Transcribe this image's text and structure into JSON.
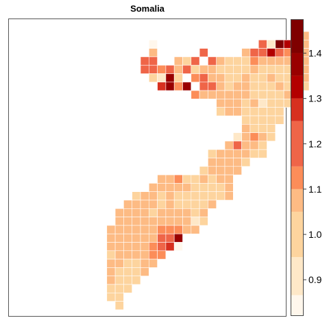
{
  "title": "Somalia",
  "colorbar": {
    "ticks": [
      0.9,
      1.0,
      1.1,
      1.2,
      1.3,
      1.4
    ],
    "tick_labels": [
      "0.9",
      "1.0",
      "1.1",
      "1.2",
      "1.3",
      "1.4"
    ],
    "bins": [
      {
        "lo": 0.82,
        "hi": 0.866,
        "color": "#FFF7EC"
      },
      {
        "lo": 0.866,
        "hi": 0.95,
        "color": "#FEE8C8"
      },
      {
        "lo": 0.95,
        "hi": 1.05,
        "color": "#FDD49E"
      },
      {
        "lo": 1.05,
        "hi": 1.1,
        "color": "#FDBB84"
      },
      {
        "lo": 1.1,
        "hi": 1.15,
        "color": "#FC8D59"
      },
      {
        "lo": 1.15,
        "hi": 1.25,
        "color": "#EF6548"
      },
      {
        "lo": 1.25,
        "hi": 1.3,
        "color": "#D7301F"
      },
      {
        "lo": 1.3,
        "hi": 1.35,
        "color": "#B30000"
      },
      {
        "lo": 1.35,
        "hi": 1.4,
        "color": "#990000"
      },
      {
        "lo": 1.4,
        "hi": 1.475,
        "color": "#7F0000"
      }
    ],
    "range": [
      0.82,
      1.475
    ]
  },
  "chart_data": {
    "type": "heatmap",
    "title": "Somalia",
    "grid_origin": "top-left",
    "rows": [
      {
        "row": 0,
        "start": 29,
        "values": [
          1.08
        ]
      },
      {
        "row": 1,
        "start": 11,
        "values": [
          0.85
        ]
      },
      {
        "row": 1,
        "start": 24,
        "values": [
          1.2,
          0.87,
          1.4,
          1.3,
          1.05,
          1.07
        ]
      },
      {
        "row": 2,
        "start": 11,
        "values": [
          1.05
        ]
      },
      {
        "row": 2,
        "start": 17,
        "values": [
          1.15
        ]
      },
      {
        "row": 2,
        "start": 22,
        "values": [
          1.08,
          1.22,
          1.15,
          1.33,
          1.2,
          1.12,
          1.22,
          1.07
        ]
      },
      {
        "row": 3,
        "start": 10,
        "values": [
          1.18,
          1.15
        ]
      },
      {
        "row": 3,
        "start": 14,
        "values": [
          1.07,
          1.02,
          1.15
        ]
      },
      {
        "row": 3,
        "start": 18,
        "values": [
          1.15,
          1.08,
          1.02,
          1.02,
          1.02,
          1.1,
          1.05,
          1.08,
          1.07,
          1.08,
          1.02,
          1.07
        ]
      },
      {
        "row": 4,
        "start": 10,
        "values": [
          1.2,
          1.15,
          1.1,
          1.15,
          1.05,
          1.15,
          1.02,
          1.05,
          1.08,
          1.02,
          1.02,
          1.02,
          1.02,
          1.05,
          1.02,
          1.02,
          1.02,
          1.02,
          1.08,
          1.05
        ]
      },
      {
        "row": 5,
        "start": 11,
        "values": [
          1.02,
          0.88,
          1.35,
          1.0
        ]
      },
      {
        "row": 5,
        "start": 16,
        "values": [
          1.1,
          1.2,
          1.08,
          1.05,
          1.02,
          1.02,
          1.05,
          1.0,
          1.02,
          1.08,
          1.02,
          1.02,
          1.05,
          1.05
        ]
      },
      {
        "row": 6,
        "start": 12,
        "values": [
          1.25,
          1.38,
          1.12,
          1.35
        ]
      },
      {
        "row": 6,
        "start": 17,
        "values": [
          1.15,
          1.2,
          1.08,
          1.02,
          1.05,
          1.08,
          1.02,
          1.02,
          1.02,
          1.05,
          1.02,
          1.02,
          1.0
        ]
      },
      {
        "row": 7,
        "start": 16,
        "values": [
          1.1,
          1.08,
          1.08,
          1.05,
          1.05,
          1.08,
          1.05,
          1.02,
          1.02,
          1.02,
          1.02,
          1.05,
          1.02
        ]
      },
      {
        "row": 8,
        "start": 19,
        "values": [
          1.08,
          1.05,
          1.05,
          1.02,
          1.05,
          0.88,
          1.02,
          1.02,
          1.02
        ]
      },
      {
        "row": 9,
        "start": 19,
        "values": [
          1.02,
          1.05,
          1.05,
          1.02,
          1.02,
          1.02,
          1.02,
          1.02
        ]
      },
      {
        "row": 10,
        "start": 22,
        "values": [
          1.02,
          1.02,
          1.02,
          1.02,
          1.02
        ]
      },
      {
        "row": 11,
        "start": 22,
        "values": [
          1.08,
          1.02,
          1.02,
          1.02
        ]
      },
      {
        "row": 12,
        "start": 21,
        "values": [
          0.88,
          1.05,
          1.1,
          1.05,
          1.02
        ]
      },
      {
        "row": 13,
        "start": 20,
        "values": [
          1.05,
          1.15,
          1.05,
          1.08,
          1.02
        ]
      },
      {
        "row": 14,
        "start": 18,
        "values": [
          1.02,
          1.05,
          1.05,
          1.05,
          1.08,
          1.02,
          1.02
        ]
      },
      {
        "row": 15,
        "start": 18,
        "values": [
          1.05,
          1.05,
          1.08,
          1.05,
          1.02
        ]
      },
      {
        "row": 16,
        "start": 17,
        "values": [
          1.02,
          1.05,
          1.08,
          1.05,
          1.08
        ]
      },
      {
        "row": 17,
        "start": 12,
        "values": [
          1.08,
          1.08,
          1.1,
          1.02,
          1.02,
          1.05,
          1.02,
          1.05,
          1.05
        ]
      },
      {
        "row": 18,
        "start": 11,
        "values": [
          1.05,
          1.08,
          1.05,
          1.05,
          1.08,
          1.02,
          1.02,
          1.02,
          1.02,
          1.05
        ]
      },
      {
        "row": 19,
        "start": 9,
        "values": [
          1.02,
          1.08,
          1.05,
          1.02,
          1.05,
          1.02,
          1.02,
          1.02,
          1.02,
          1.02,
          1.02,
          1.05
        ]
      },
      {
        "row": 20,
        "start": 8,
        "values": [
          1.05,
          1.05,
          1.05,
          1.08,
          1.02,
          1.05,
          1.02,
          1.02,
          1.02,
          1.02,
          1.05
        ]
      },
      {
        "row": 21,
        "start": 7,
        "values": [
          1.05,
          1.08,
          1.05,
          1.05,
          1.02,
          1.05,
          1.05,
          1.05,
          1.08,
          1.02,
          1.05
        ]
      },
      {
        "row": 22,
        "start": 7,
        "values": [
          1.05,
          1.05,
          1.05,
          1.08,
          1.05,
          1.08,
          1.08,
          1.05,
          1.05,
          0.92,
          1.02
        ]
      },
      {
        "row": 23,
        "start": 6,
        "values": [
          1.08,
          1.05,
          1.05,
          1.08,
          1.05,
          1.05,
          1.1,
          1.1,
          1.1,
          1.08,
          1.05
        ]
      },
      {
        "row": 24,
        "start": 6,
        "values": [
          1.08,
          1.05,
          1.05,
          1.05,
          1.08,
          1.08,
          1.2,
          1.15,
          1.35
        ]
      },
      {
        "row": 25,
        "start": 6,
        "values": [
          1.05,
          1.08,
          1.08,
          1.05,
          1.08,
          1.1,
          1.15,
          1.25,
          0.86
        ]
      },
      {
        "row": 26,
        "start": 6,
        "values": [
          1.02,
          1.05,
          1.08,
          1.05,
          1.08,
          1.12,
          1.12
        ]
      },
      {
        "row": 27,
        "start": 6,
        "values": [
          1.05,
          1.05,
          1.02,
          1.02,
          1.08,
          1.05
        ]
      },
      {
        "row": 28,
        "start": 6,
        "values": [
          1.05,
          1.02,
          1.02,
          1.02,
          1.05
        ]
      },
      {
        "row": 29,
        "start": 6,
        "values": [
          1.05,
          1.02,
          1.02,
          1.02
        ]
      },
      {
        "row": 30,
        "start": 6,
        "values": [
          1.02,
          1.02,
          1.02
        ]
      },
      {
        "row": 31,
        "start": 6,
        "values": [
          1.02,
          1.02
        ]
      },
      {
        "row": 32,
        "start": 7,
        "values": [
          1.02
        ]
      }
    ]
  }
}
